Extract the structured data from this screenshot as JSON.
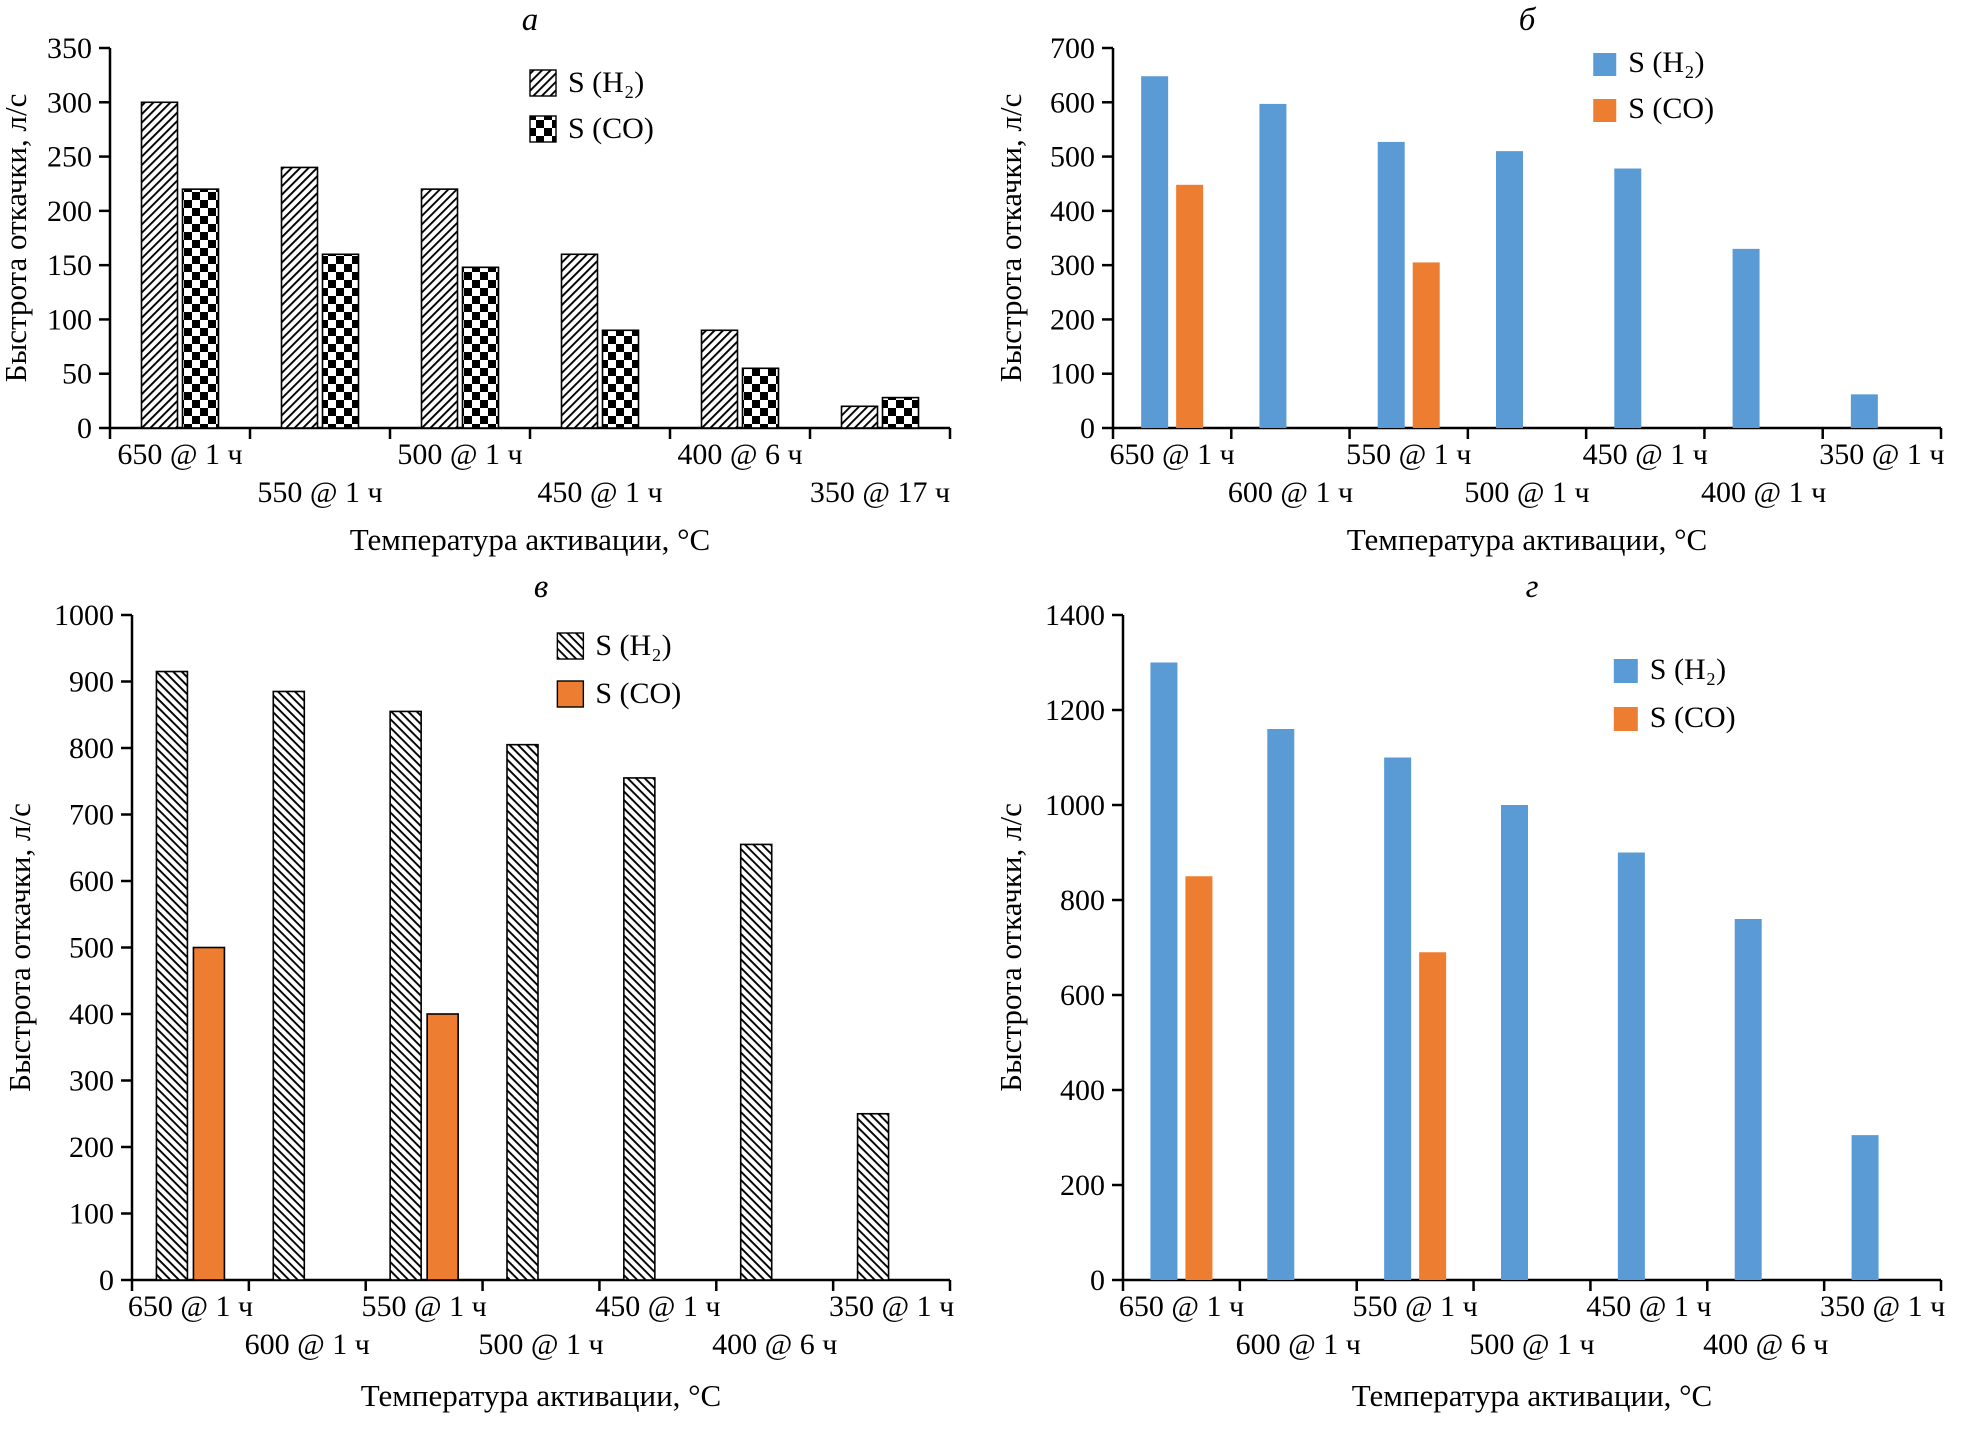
{
  "figure": {
    "background": "#ffffff",
    "panel_titles": [
      "а",
      "б",
      "в",
      "г"
    ]
  },
  "colors": {
    "blue": "#5B9BD5",
    "orange": "#ED7D31",
    "axis": "#000000",
    "bar_outline": "#000000",
    "pattern_bg": "#ffffff"
  },
  "chart_data": [
    {
      "id": "a",
      "title": "а",
      "type": "bar",
      "ylabel": "Быстрота откачки, л/с",
      "xlabel": "Температура активации, °C",
      "ylim": [
        0,
        350
      ],
      "ytick_step": 50,
      "grid": false,
      "legend_position": "inside-upper-right",
      "categories": [
        "650 @ 1 ч",
        "550 @ 1 ч",
        "500 @ 1 ч",
        "450 @ 1 ч",
        "400 @ 6 ч",
        "350 @ 17 ч"
      ],
      "series": [
        {
          "name": "S (H₂)",
          "style": "hatch-forward",
          "values": [
            300,
            240,
            220,
            160,
            90,
            20
          ]
        },
        {
          "name": "S (CO)",
          "style": "checker",
          "values": [
            220,
            160,
            148,
            90,
            55,
            28
          ]
        }
      ]
    },
    {
      "id": "b",
      "title": "б",
      "type": "bar",
      "ylabel": "Быстрота откачки, л/с",
      "xlabel": "Температура активации, °C",
      "ylim": [
        0,
        700
      ],
      "ytick_step": 100,
      "grid": false,
      "legend_position": "inside-upper-right",
      "categories": [
        "650 @ 1 ч",
        "600 @ 1 ч",
        "550 @ 1 ч",
        "500 @ 1 ч",
        "450 @ 1 ч",
        "400 @ 1 ч",
        "350 @ 1 ч"
      ],
      "series": [
        {
          "name": "S (H₂)",
          "style": "solid-blue",
          "values": [
            648,
            597,
            527,
            510,
            478,
            330,
            62
          ]
        },
        {
          "name": "S (CO)",
          "style": "solid-orange",
          "values": [
            448,
            null,
            305,
            null,
            null,
            null,
            null
          ]
        }
      ]
    },
    {
      "id": "v",
      "title": "в",
      "type": "bar",
      "ylabel": "Быстрота откачки, л/с",
      "xlabel": "Температура активации, °C",
      "ylim": [
        0,
        1000
      ],
      "ytick_step": 100,
      "grid": false,
      "legend_position": "inside-upper-center-right",
      "categories": [
        "650 @ 1 ч",
        "600 @ 1 ч",
        "550 @ 1 ч",
        "500 @ 1 ч",
        "450 @ 1 ч",
        "400 @ 6 ч",
        "350 @ 1 ч"
      ],
      "series": [
        {
          "name": "S (H₂)",
          "style": "hatch-back",
          "values": [
            915,
            885,
            855,
            805,
            755,
            655,
            250
          ]
        },
        {
          "name": "S (CO)",
          "style": "solid-orange-border",
          "values": [
            500,
            null,
            400,
            null,
            null,
            null,
            null
          ]
        }
      ]
    },
    {
      "id": "g",
      "title": "г",
      "type": "bar",
      "ylabel": "Быстрота откачки, л/с",
      "xlabel": "Температура активации, °C",
      "ylim": [
        0,
        1400
      ],
      "ytick_step": 200,
      "grid": false,
      "legend_position": "inside-upper-right",
      "categories": [
        "650 @ 1 ч",
        "600 @ 1 ч",
        "550 @ 1 ч",
        "500 @ 1 ч",
        "450 @ 1 ч",
        "400 @ 6 ч",
        "350 @ 1 ч"
      ],
      "series": [
        {
          "name": "S (H₂)",
          "style": "solid-blue",
          "values": [
            1300,
            1160,
            1100,
            1000,
            900,
            760,
            305
          ]
        },
        {
          "name": "S (CO)",
          "style": "solid-orange",
          "values": [
            850,
            null,
            690,
            null,
            null,
            null,
            null
          ]
        }
      ]
    }
  ]
}
